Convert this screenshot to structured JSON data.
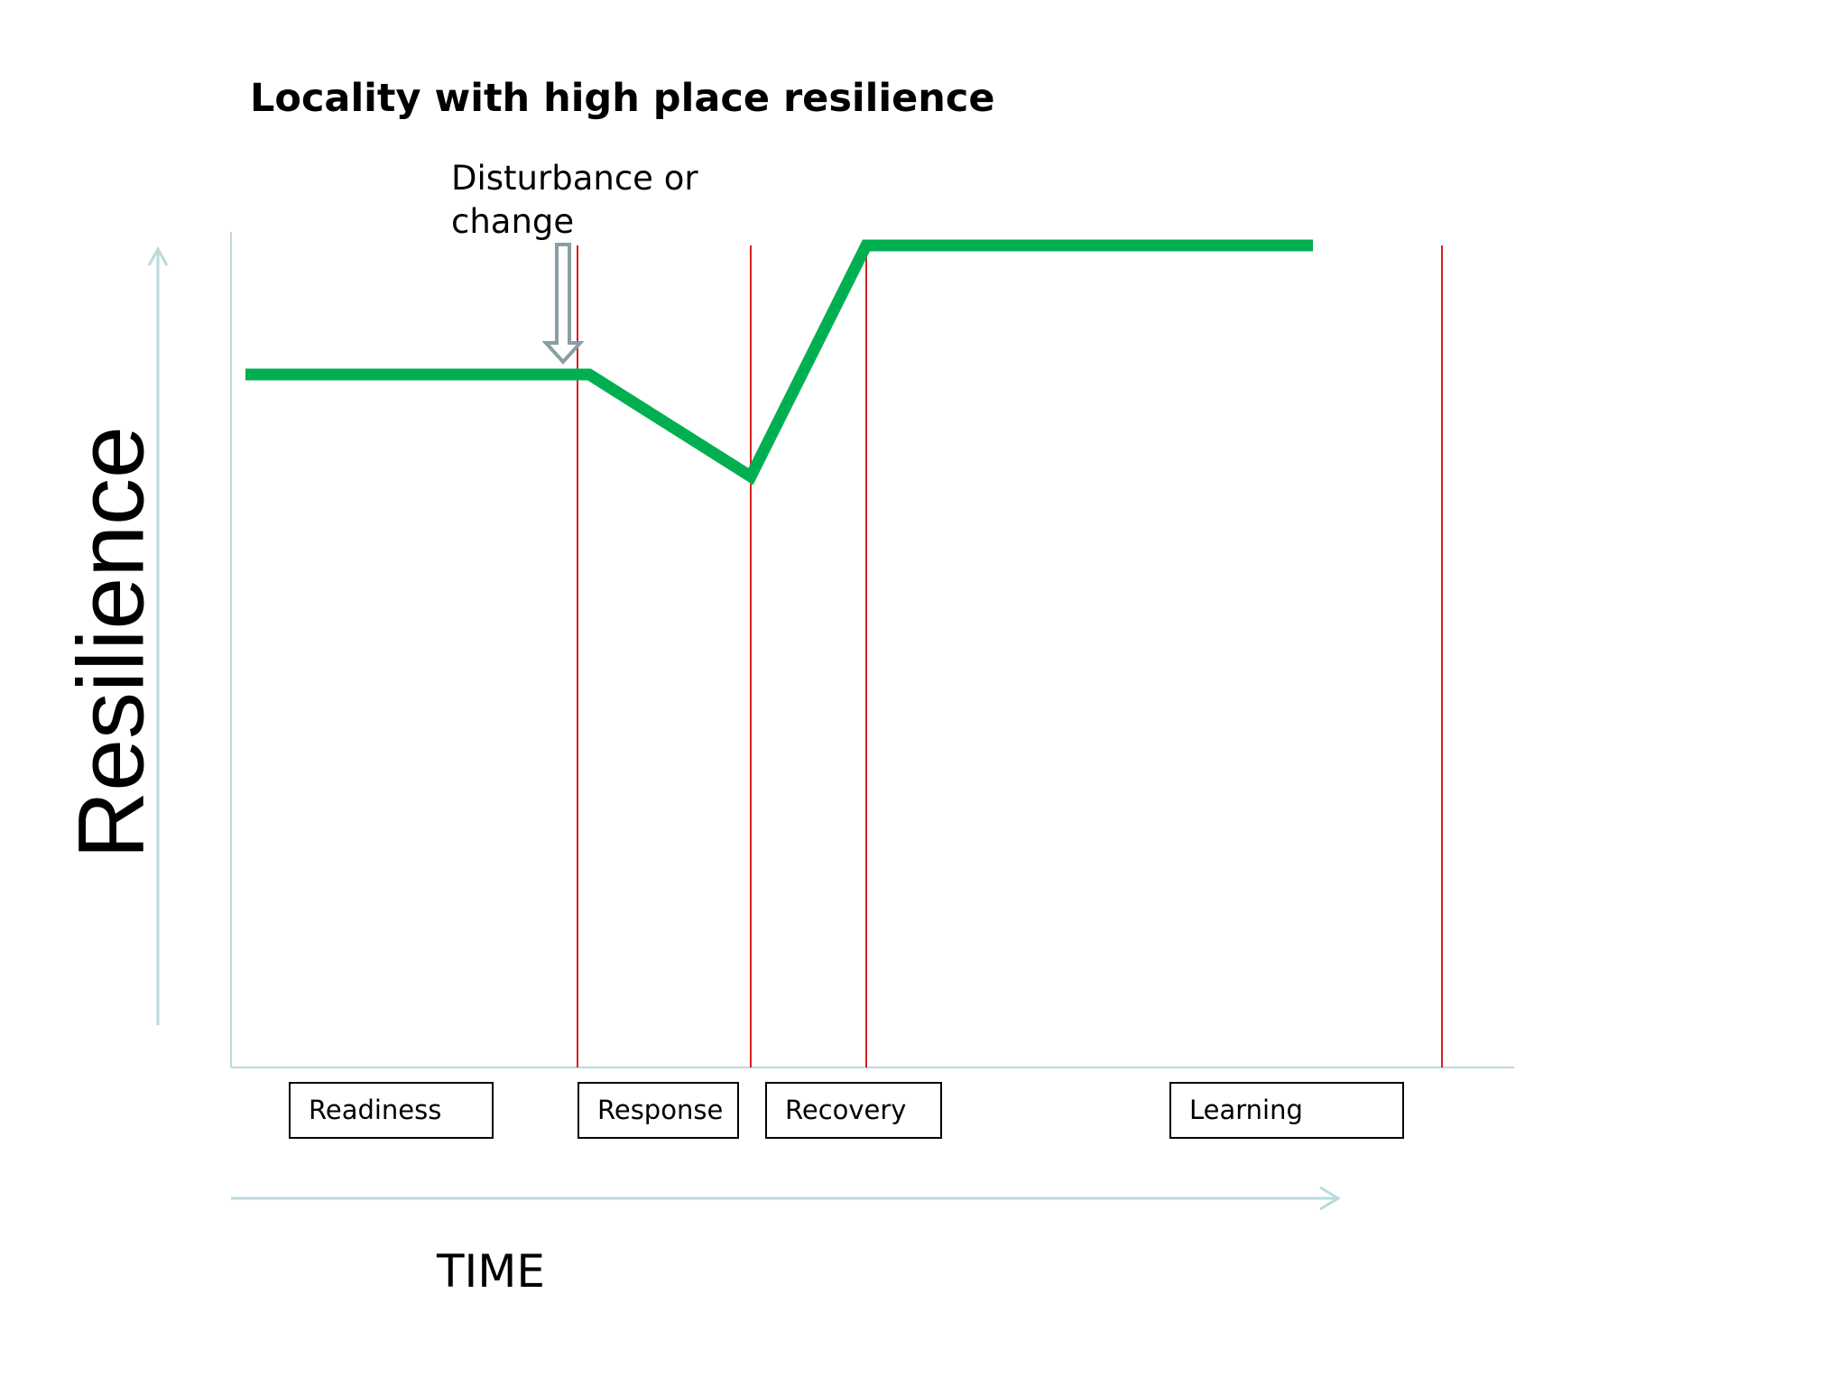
{
  "title": "Locality with high place resilience",
  "annotation": "Disturbance or change",
  "y_axis_label": "Resilience",
  "x_axis_label": "TIME",
  "phases": [
    "Readiness",
    "Response",
    "Recovery",
    "Learning"
  ]
}
